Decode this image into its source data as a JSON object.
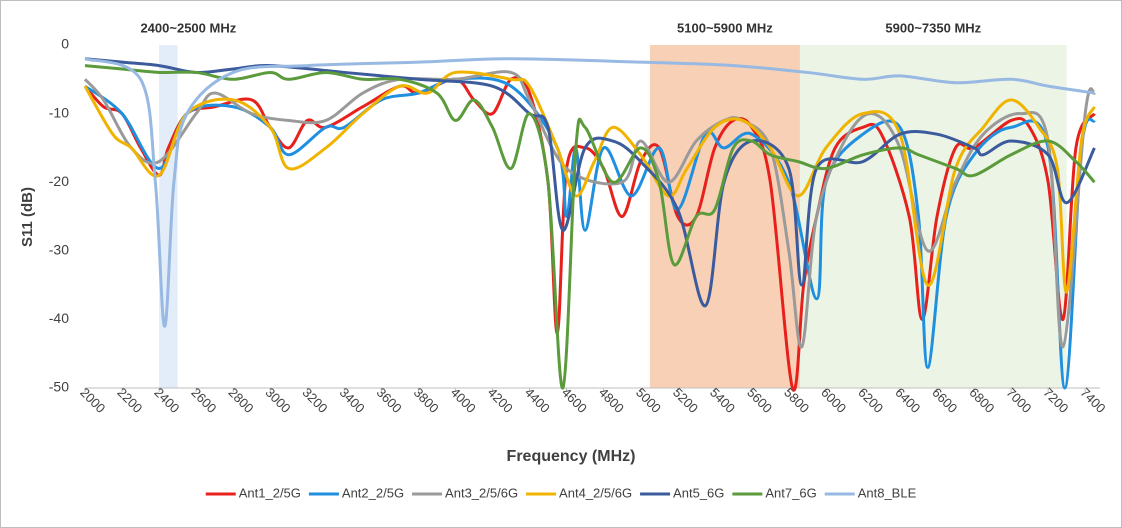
{
  "chart_data": {
    "type": "line",
    "xlabel": "Frequency (MHz)",
    "ylabel": "S11 (dB)",
    "xlim": [
      2000,
      7480
    ],
    "ylim": [
      -50,
      0
    ],
    "xticks": [
      2000,
      2200,
      2400,
      2600,
      2800,
      3000,
      3200,
      3400,
      3600,
      3800,
      4000,
      4200,
      4400,
      4600,
      4800,
      5000,
      5200,
      5400,
      5600,
      5800,
      6000,
      6200,
      6400,
      6600,
      6800,
      7000,
      7200,
      7400
    ],
    "yticks": [
      -50,
      -40,
      -30,
      -20,
      -10,
      0
    ],
    "grid": false,
    "legend": "bottom",
    "regions": [
      {
        "label": "2400~2500 MHz",
        "xlim": [
          2400,
          2500
        ],
        "color": "#e3edf9"
      },
      {
        "label": "5100~5900 MHz",
        "xlim": [
          5050,
          5860
        ],
        "color": "#f8d0b6"
      },
      {
        "label": "5900~7350 MHz",
        "xlim": [
          5860,
          7300
        ],
        "color": "#ecf4e6"
      }
    ],
    "series": [
      {
        "name": "Ant1_2/5G",
        "color": "#e8201c",
        "x": [
          2000,
          2100,
          2200,
          2300,
          2400,
          2450,
          2550,
          2700,
          2900,
          3000,
          3100,
          3200,
          3300,
          3500,
          3700,
          3800,
          4000,
          4100,
          4200,
          4300,
          4400,
          4500,
          4550,
          4600,
          4700,
          4800,
          4900,
          5000,
          5100,
          5200,
          5300,
          5400,
          5500,
          5600,
          5700,
          5820,
          5880,
          5950,
          6050,
          6200,
          6300,
          6450,
          6520,
          6600,
          6700,
          6800,
          7000,
          7100,
          7200,
          7280,
          7350,
          7450
        ],
        "values": [
          -6,
          -9,
          -10,
          -15,
          -19,
          -15,
          -10,
          -9,
          -8,
          -12,
          -15,
          -11,
          -12,
          -9,
          -6,
          -7,
          -5,
          -8,
          -10,
          -5,
          -7,
          -20,
          -42,
          -18,
          -15,
          -18,
          -25,
          -17,
          -15,
          -25,
          -25,
          -15,
          -11,
          -12,
          -20,
          -50,
          -35,
          -25,
          -15,
          -12,
          -13,
          -25,
          -40,
          -25,
          -15,
          -15,
          -11,
          -12,
          -20,
          -40,
          -15,
          -10
        ]
      },
      {
        "name": "Ant2_2/5G",
        "color": "#1f8fe0",
        "x": [
          2000,
          2200,
          2400,
          2550,
          2800,
          3000,
          3100,
          3300,
          3400,
          3600,
          3800,
          4000,
          4300,
          4550,
          4600,
          4650,
          4700,
          4800,
          4950,
          5100,
          5200,
          5350,
          5450,
          5600,
          5800,
          5950,
          6000,
          6200,
          6400,
          6500,
          6550,
          6650,
          6800,
          7000,
          7200,
          7290,
          7380,
          7450
        ],
        "values": [
          -6,
          -10,
          -18,
          -10,
          -9,
          -12,
          -16,
          -12,
          -12,
          -8,
          -7,
          -5,
          -6,
          -15,
          -25,
          -15,
          -27,
          -15,
          -22,
          -15,
          -24,
          -13,
          -15,
          -13,
          -20,
          -37,
          -20,
          -13,
          -12,
          -25,
          -47,
          -25,
          -16,
          -12,
          -15,
          -50,
          -15,
          -11
        ]
      },
      {
        "name": "Ant3_2/5/6G",
        "color": "#9a9a9a",
        "x": [
          2000,
          2100,
          2250,
          2400,
          2600,
          2700,
          2900,
          3100,
          3300,
          3500,
          3700,
          4000,
          4300,
          4400,
          4600,
          4900,
          5000,
          5150,
          5300,
          5450,
          5550,
          5700,
          5800,
          5870,
          5950,
          6100,
          6250,
          6400,
          6550,
          6700,
          6850,
          7050,
          7200,
          7280,
          7400,
          7450
        ],
        "values": [
          -5,
          -8,
          -15,
          -17,
          -10,
          -7,
          -10,
          -11,
          -11,
          -7,
          -5,
          -5,
          -4,
          -8,
          -18,
          -20,
          -14,
          -20,
          -14,
          -11,
          -11,
          -15,
          -30,
          -44,
          -25,
          -14,
          -10,
          -15,
          -30,
          -20,
          -13,
          -10,
          -14,
          -44,
          -10,
          -7
        ]
      },
      {
        "name": "Ant4_2/5/6G",
        "color": "#f0b400",
        "x": [
          2000,
          2150,
          2250,
          2400,
          2550,
          2800,
          3000,
          3100,
          3300,
          3500,
          3700,
          3850,
          4000,
          4300,
          4400,
          4550,
          4650,
          4750,
          4850,
          5000,
          5150,
          5250,
          5400,
          5550,
          5700,
          5850,
          6000,
          6200,
          6400,
          6550,
          6700,
          6850,
          7000,
          7150,
          7250,
          7300,
          7380,
          7450
        ],
        "values": [
          -6,
          -13,
          -15,
          -19,
          -10,
          -8,
          -12,
          -18,
          -15,
          -10,
          -6,
          -7,
          -4,
          -5,
          -6,
          -15,
          -22,
          -17,
          -12,
          -16,
          -22,
          -18,
          -12,
          -11,
          -15,
          -22,
          -15,
          -10,
          -13,
          -35,
          -18,
          -12,
          -8,
          -12,
          -18,
          -36,
          -14,
          -9
        ]
      },
      {
        "name": "Ant5_6G",
        "color": "#3b5b9d",
        "x": [
          2000,
          2200,
          2400,
          2600,
          2800,
          3000,
          3400,
          3800,
          4200,
          4400,
          4500,
          4580,
          4700,
          4850,
          5000,
          5200,
          5350,
          5450,
          5600,
          5800,
          5870,
          5950,
          6200,
          6400,
          6600,
          6800,
          6850,
          7000,
          7200,
          7300,
          7450
        ],
        "values": [
          -2,
          -2.5,
          -3,
          -4,
          -3.5,
          -3,
          -4,
          -5,
          -6,
          -10,
          -12,
          -27,
          -15,
          -14,
          -17,
          -24,
          -38,
          -20,
          -14,
          -18,
          -35,
          -18,
          -17,
          -13,
          -13,
          -15,
          -16,
          -14,
          -16,
          -23,
          -15
        ]
      },
      {
        "name": "Ant7_6G",
        "color": "#5b9b3c",
        "x": [
          2000,
          2200,
          2400,
          2600,
          2800,
          3000,
          3100,
          3300,
          3500,
          3700,
          3900,
          4000,
          4100,
          4200,
          4300,
          4400,
          4500,
          4580,
          4650,
          4700,
          4850,
          5000,
          5100,
          5180,
          5300,
          5400,
          5500,
          5600,
          5700,
          5850,
          6000,
          6200,
          6400,
          6500,
          6700,
          6800,
          7000,
          7200,
          7350,
          7450
        ],
        "values": [
          -3,
          -3.5,
          -4,
          -4,
          -5,
          -4,
          -5,
          -4,
          -5,
          -5,
          -7,
          -11,
          -8,
          -12,
          -18,
          -10,
          -20,
          -50,
          -15,
          -12,
          -20,
          -15,
          -20,
          -32,
          -25,
          -24,
          -15,
          -14,
          -16,
          -17,
          -18,
          -16,
          -15,
          -16,
          -18,
          -19,
          -16,
          -14,
          -17,
          -20
        ]
      },
      {
        "name": "Ant8_BLE",
        "color": "#98b9e2",
        "x": [
          2000,
          2300,
          2380,
          2430,
          2480,
          2550,
          2800,
          3200,
          3800,
          4300,
          5000,
          5500,
          5900,
          6200,
          6400,
          6700,
          7000,
          7200,
          7450
        ],
        "values": [
          -2,
          -5,
          -20,
          -41,
          -20,
          -10,
          -4,
          -3,
          -2.5,
          -2,
          -2.5,
          -3,
          -4,
          -5,
          -4.5,
          -5.5,
          -5,
          -6,
          -7
        ]
      }
    ]
  }
}
